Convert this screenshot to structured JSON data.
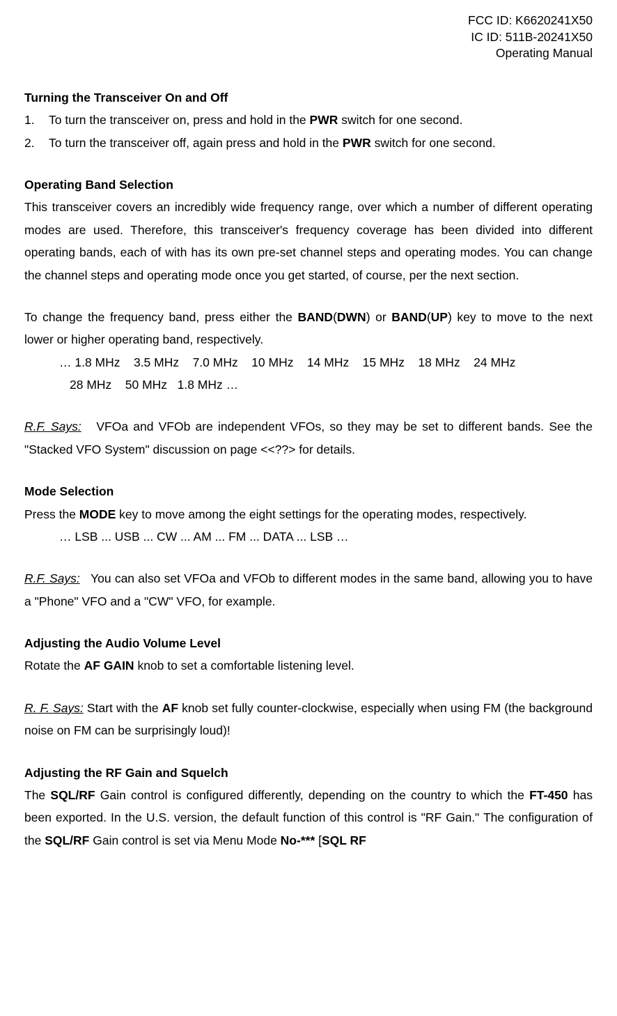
{
  "header": {
    "fcc_id": "FCC ID: K6620241X50",
    "ic_id": "IC ID: 511B-20241X50",
    "manual_type": "Operating Manual"
  },
  "sections": {
    "turning_on_off": {
      "heading": "Turning the Transceiver On and Off",
      "item1_num": "1.",
      "item1_pre": "To turn the transceiver on, press and hold in the ",
      "item1_bold": "PWR",
      "item1_post": " switch for one second.",
      "item2_num": "2.",
      "item2_pre": "To turn the transceiver off, again press and hold in the ",
      "item2_bold": "PWR",
      "item2_post": " switch for one second."
    },
    "band_selection": {
      "heading": "Operating Band Selection",
      "para1": "This transceiver covers an incredibly wide frequency range, over which a number of different operating modes are used. Therefore, this transceiver's frequency coverage has been divided into different operating bands, each of with has its own pre-set channel steps and operating modes. You can change the channel steps and operating mode once you get started, of course, per the next section.",
      "para2_pre": "To change the frequency band, press either the ",
      "para2_b1": "BAND",
      "para2_p1": "(",
      "para2_b2": "DWN",
      "para2_p2": ") or ",
      "para2_b3": "BAND",
      "para2_p3": "(",
      "para2_b4": "UP",
      "para2_p4": ") key to move to the next lower or higher operating band, respectively.",
      "bands_line1": "… 1.8 MHz    3.5 MHz    7.0 MHz    10 MHz    14 MHz    15 MHz    18 MHz    24 MHz",
      "bands_line2": "28 MHz    50 MHz   1.8 MHz …",
      "rf_says_label": "R.F. Says:",
      "rf_says_text": "   VFOa and VFOb are independent VFOs, so they may be set to different bands. See the \"Stacked VFO System\" discussion on page <<??> for details."
    },
    "mode_selection": {
      "heading": "Mode Selection",
      "para_pre": "Press the ",
      "para_bold": "MODE",
      "para_post": " key to move among the eight settings for the operating modes, respectively.",
      "modes_list": "… LSB ... USB ... CW ... AM ... FM ... DATA ... LSB …",
      "rf_says_label": "R.F. Says:",
      "rf_says_text": "   You can also set VFOa and VFOb to different modes in the same band, allowing you to have a \"Phone\" VFO and a \"CW\" VFO, for example."
    },
    "audio_volume": {
      "heading": "Adjusting the Audio Volume Level",
      "para_pre": "Rotate the ",
      "para_bold": "AF GAIN",
      "para_post": " knob to set a comfortable listening level.",
      "rf_says_label": "R. F. Says:",
      "rf_says_pre": "  Start with the ",
      "rf_says_bold": "AF",
      "rf_says_post": " knob set fully counter-clockwise, especially when using FM (the background noise on FM can be surprisingly loud)!"
    },
    "rf_gain_squelch": {
      "heading": "Adjusting the RF Gain and Squelch",
      "para_pre": "The ",
      "para_b1": "SQL/RF",
      "para_mid1": " Gain control is configured differently, depending on the country to which the ",
      "para_b2": "FT-450",
      "para_mid2": " has been exported. In the U.S. version, the default function of this control is \"RF Gain.\" The configuration of the ",
      "para_b3": "SQL/RF",
      "para_mid3": " Gain control is set via Menu Mode ",
      "para_b4": "No-***",
      "para_mid4": " [",
      "para_b5": "SQL RF"
    }
  }
}
